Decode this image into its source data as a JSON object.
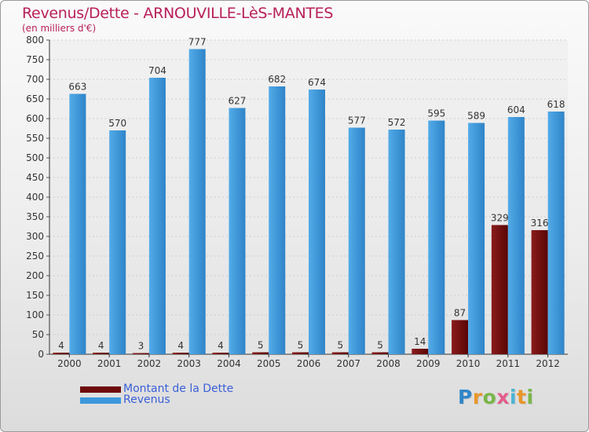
{
  "chart_data": {
    "type": "bar",
    "title": "Revenus/Dette - ARNOUVILLE-LèS-MANTES",
    "subtitle": "(en milliers d'€)",
    "categories": [
      "2000",
      "2001",
      "2002",
      "2003",
      "2004",
      "2005",
      "2006",
      "2007",
      "2008",
      "2009",
      "2010",
      "2011",
      "2012"
    ],
    "series": [
      {
        "name": "Montant de la Dette",
        "color": "#7a0f0f",
        "values": [
          4,
          4,
          3,
          4,
          4,
          5,
          5,
          5,
          5,
          14,
          87,
          329,
          316
        ]
      },
      {
        "name": "Revenus",
        "color": "#3d97dc",
        "values": [
          663,
          570,
          704,
          777,
          627,
          682,
          674,
          577,
          572,
          595,
          589,
          604,
          618
        ]
      }
    ],
    "ylim": [
      0,
      800
    ],
    "yticks": [
      0,
      50,
      100,
      150,
      200,
      250,
      300,
      350,
      400,
      450,
      500,
      550,
      600,
      650,
      700,
      750,
      800
    ],
    "grid": true,
    "legend_position": "bottom-left"
  },
  "logo": {
    "letters": [
      "P",
      "r",
      "o",
      "x",
      "i",
      "t",
      "i"
    ],
    "colors": [
      "#2f86c9",
      "#e8962a",
      "#7ab648",
      "#e45d8c",
      "#4cb3d4",
      "#e8962a",
      "#7ab648"
    ]
  }
}
